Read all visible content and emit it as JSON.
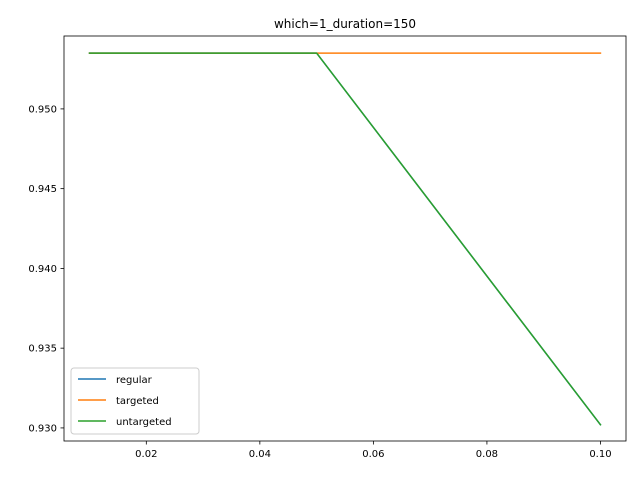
{
  "chart_data": {
    "type": "line",
    "title": "which=1_duration=150",
    "xlabel": "",
    "ylabel": "",
    "xlim": [
      0.0055,
      0.1045
    ],
    "ylim": [
      0.92918,
      0.95457
    ],
    "xticks": [
      {
        "value": 0.02,
        "label": "0.02"
      },
      {
        "value": 0.04,
        "label": "0.04"
      },
      {
        "value": 0.06,
        "label": "0.06"
      },
      {
        "value": 0.08,
        "label": "0.08"
      },
      {
        "value": 0.1,
        "label": "0.10"
      }
    ],
    "yticks": [
      {
        "value": 0.93,
        "label": "0.930"
      },
      {
        "value": 0.935,
        "label": "0.935"
      },
      {
        "value": 0.94,
        "label": "0.940"
      },
      {
        "value": 0.945,
        "label": "0.945"
      },
      {
        "value": 0.95,
        "label": "0.950"
      }
    ],
    "grid": false,
    "legend_position": "lower-left",
    "series": [
      {
        "name": "regular",
        "color": "#1f77b4",
        "x": [
          0.01,
          0.05,
          0.1
        ],
        "y": [
          0.9535,
          0.9535,
          0.9302
        ]
      },
      {
        "name": "targeted",
        "color": "#ff7f0e",
        "x": [
          0.01,
          0.05,
          0.1
        ],
        "y": [
          0.9535,
          0.9535,
          0.9535
        ]
      },
      {
        "name": "untargeted",
        "color": "#2ca02c",
        "x": [
          0.01,
          0.05,
          0.1
        ],
        "y": [
          0.9535,
          0.9535,
          0.9302
        ]
      }
    ]
  }
}
